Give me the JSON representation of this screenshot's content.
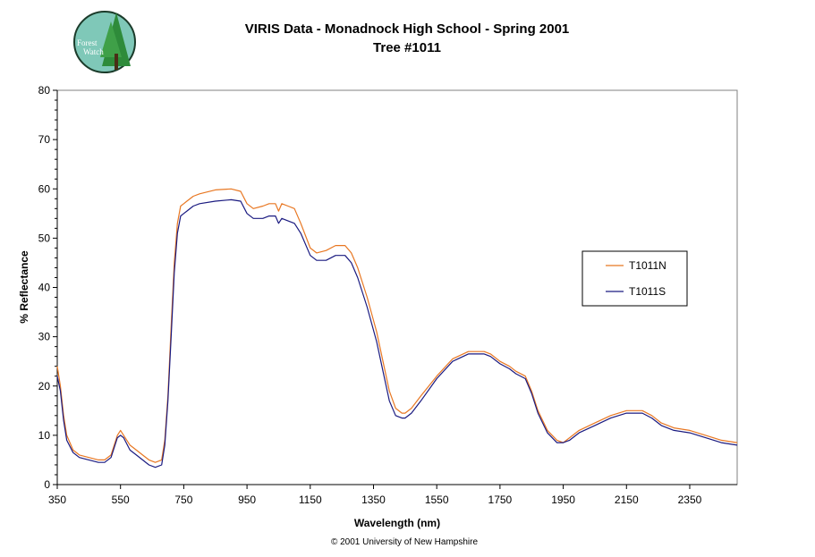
{
  "logo": {
    "text_line1": "Forest",
    "text_line2": "Watch"
  },
  "copyright": "© 2001 University of New Hampshire",
  "colors": {
    "T1011N": "#e87722",
    "T1011S": "#1a1a80",
    "logo_bg": "#7fc8b8",
    "tree": "#2e8b3a"
  },
  "chart_data": {
    "type": "line",
    "title": "VIRIS Data - Monadnock High School - Spring 2001",
    "subtitle": "Tree #1011",
    "xlabel": "Wavelength (nm)",
    "ylabel": "% Reflectance",
    "xlim": [
      350,
      2500
    ],
    "ylim": [
      0,
      80
    ],
    "xticks": [
      350,
      550,
      750,
      950,
      1150,
      1350,
      1550,
      1750,
      1950,
      2150,
      2350
    ],
    "yticks": [
      0,
      10,
      20,
      30,
      40,
      50,
      60,
      70,
      80
    ],
    "grid": false,
    "legend_position": "right",
    "series": [
      {
        "name": "T1011N",
        "x": [
          350,
          360,
          370,
          380,
          400,
          420,
          450,
          480,
          500,
          520,
          540,
          550,
          560,
          580,
          600,
          620,
          640,
          660,
          680,
          690,
          700,
          710,
          720,
          730,
          740,
          750,
          760,
          780,
          800,
          850,
          900,
          930,
          950,
          970,
          1000,
          1020,
          1040,
          1050,
          1060,
          1080,
          1100,
          1120,
          1150,
          1170,
          1200,
          1230,
          1260,
          1280,
          1300,
          1330,
          1360,
          1380,
          1400,
          1420,
          1440,
          1450,
          1470,
          1500,
          1550,
          1600,
          1650,
          1700,
          1720,
          1750,
          1780,
          1800,
          1830,
          1850,
          1870,
          1900,
          1930,
          1950,
          1970,
          2000,
          2050,
          2100,
          2150,
          2200,
          2230,
          2260,
          2300,
          2350,
          2400,
          2450,
          2500
        ],
        "y": [
          24,
          20,
          14,
          10,
          7,
          6,
          5.5,
          5,
          5,
          6,
          10,
          11,
          10,
          8,
          7,
          6,
          5,
          4.5,
          5,
          9,
          18,
          32,
          45,
          53,
          56.5,
          57,
          57.5,
          58.5,
          59,
          59.8,
          60,
          59.5,
          57,
          56,
          56.5,
          57,
          57,
          55.5,
          57,
          56.5,
          56,
          53,
          48,
          47,
          47.5,
          48.5,
          48.5,
          47,
          44,
          38,
          31,
          25,
          19,
          15.5,
          14.5,
          14.5,
          15.5,
          18,
          22,
          25.5,
          27,
          27,
          26.5,
          25,
          24,
          23,
          22,
          19,
          15,
          11,
          9,
          8.5,
          9.5,
          11,
          12.5,
          14,
          15,
          15,
          14,
          12.5,
          11.5,
          11,
          10,
          9,
          8.5
        ]
      },
      {
        "name": "T1011S",
        "x": [
          350,
          360,
          370,
          380,
          400,
          420,
          450,
          480,
          500,
          520,
          540,
          550,
          560,
          580,
          600,
          620,
          640,
          660,
          680,
          690,
          700,
          710,
          720,
          730,
          740,
          750,
          760,
          780,
          800,
          850,
          900,
          930,
          950,
          970,
          1000,
          1020,
          1040,
          1050,
          1060,
          1080,
          1100,
          1120,
          1150,
          1170,
          1200,
          1230,
          1260,
          1280,
          1300,
          1330,
          1360,
          1380,
          1400,
          1420,
          1440,
          1450,
          1470,
          1500,
          1550,
          1600,
          1650,
          1700,
          1720,
          1750,
          1780,
          1800,
          1830,
          1850,
          1870,
          1900,
          1930,
          1950,
          1970,
          2000,
          2050,
          2100,
          2150,
          2200,
          2230,
          2260,
          2300,
          2350,
          2400,
          2450,
          2500
        ],
        "y": [
          22,
          19,
          13,
          9,
          6.5,
          5.5,
          5,
          4.5,
          4.5,
          5.5,
          9.5,
          10,
          9.5,
          7,
          6,
          5,
          4,
          3.5,
          4,
          8,
          17,
          30,
          43,
          51,
          54.5,
          55,
          55.5,
          56.5,
          57,
          57.5,
          57.8,
          57.5,
          55,
          54,
          54,
          54.5,
          54.5,
          53,
          54,
          53.5,
          53,
          51,
          46.5,
          45.5,
          45.5,
          46.5,
          46.5,
          45,
          42,
          36,
          29,
          23,
          17,
          14,
          13.5,
          13.5,
          14.5,
          17,
          21.5,
          25,
          26.5,
          26.5,
          26,
          24.5,
          23.5,
          22.5,
          21.5,
          18.5,
          14.5,
          10.5,
          8.5,
          8.5,
          9,
          10.5,
          12,
          13.5,
          14.5,
          14.5,
          13.5,
          12,
          11,
          10.5,
          9.5,
          8.5,
          8
        ]
      }
    ]
  }
}
